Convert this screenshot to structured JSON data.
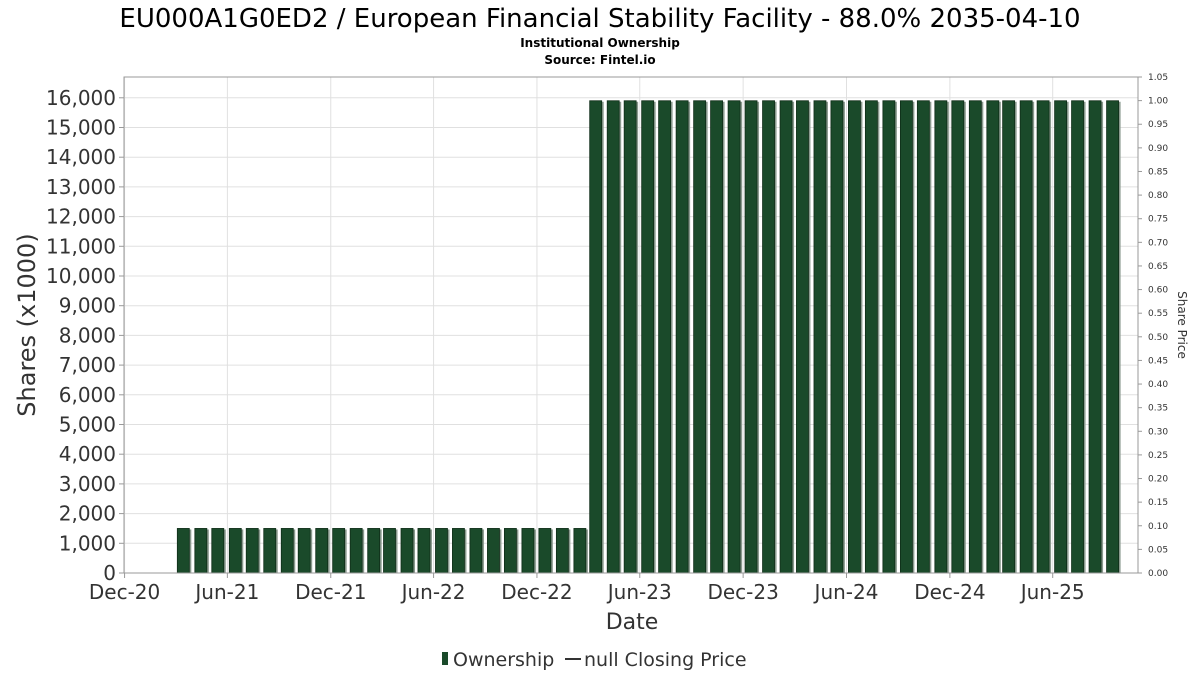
{
  "chart_data": {
    "type": "bar",
    "title": "EU000A1G0ED2 / European Financial Stability Facility - 88.0% 2035-04-10",
    "subtitle": "Institutional Ownership",
    "source": "Source: Fintel.io",
    "xlabel": "Date",
    "ylabel": "Shares (x1000)",
    "y2label": "Share Price",
    "ylim": [
      0,
      16700
    ],
    "y2lim": [
      0,
      1.05
    ],
    "xlim": [
      "2020-11-30",
      "2025-10-30"
    ],
    "x_tick_labels": [
      {
        "date": "2020-12-01",
        "label": "Dec-20"
      },
      {
        "date": "2021-06-01",
        "label": "Jun-21"
      },
      {
        "date": "2021-12-01",
        "label": "Dec-21"
      },
      {
        "date": "2022-06-01",
        "label": "Jun-22"
      },
      {
        "date": "2022-12-01",
        "label": "Dec-22"
      },
      {
        "date": "2023-06-01",
        "label": "Jun-23"
      },
      {
        "date": "2023-12-01",
        "label": "Dec-23"
      },
      {
        "date": "2024-06-01",
        "label": "Jun-24"
      },
      {
        "date": "2024-12-01",
        "label": "Dec-24"
      },
      {
        "date": "2025-06-01",
        "label": "Jun-25"
      }
    ],
    "y_tick_labels": [
      "0",
      "1,000",
      "2,000",
      "3,000",
      "4,000",
      "5,000",
      "6,000",
      "7,000",
      "8,000",
      "9,000",
      "10,000",
      "11,000",
      "12,000",
      "13,000",
      "14,000",
      "15,000",
      "16,000"
    ],
    "y2_tick_labels": [
      "0.00",
      "0.05",
      "0.10",
      "0.15",
      "0.20",
      "0.25",
      "0.30",
      "0.35",
      "0.40",
      "0.45",
      "0.50",
      "0.55",
      "0.60",
      "0.65",
      "0.70",
      "0.75",
      "0.80",
      "0.85",
      "0.90",
      "0.95",
      "1.00",
      "1.05"
    ],
    "grid": true,
    "legend_position": "bottom",
    "series": [
      {
        "name": "Ownership",
        "color": "#1a4a2a",
        "values": [
          {
            "date": "2021-03-15",
            "value": 1500
          },
          {
            "date": "2021-04-15",
            "value": 1500
          },
          {
            "date": "2021-05-15",
            "value": 1500
          },
          {
            "date": "2021-06-15",
            "value": 1500
          },
          {
            "date": "2021-07-15",
            "value": 1500
          },
          {
            "date": "2021-08-15",
            "value": 1500
          },
          {
            "date": "2021-09-15",
            "value": 1500
          },
          {
            "date": "2021-10-15",
            "value": 1500
          },
          {
            "date": "2021-11-15",
            "value": 1500
          },
          {
            "date": "2021-12-15",
            "value": 1500
          },
          {
            "date": "2022-01-15",
            "value": 1500
          },
          {
            "date": "2022-02-15",
            "value": 1500
          },
          {
            "date": "2022-03-15",
            "value": 1500
          },
          {
            "date": "2022-04-15",
            "value": 1500
          },
          {
            "date": "2022-05-15",
            "value": 1500
          },
          {
            "date": "2022-06-15",
            "value": 1500
          },
          {
            "date": "2022-07-15",
            "value": 1500
          },
          {
            "date": "2022-08-15",
            "value": 1500
          },
          {
            "date": "2022-09-15",
            "value": 1500
          },
          {
            "date": "2022-10-15",
            "value": 1500
          },
          {
            "date": "2022-11-15",
            "value": 1500
          },
          {
            "date": "2022-12-15",
            "value": 1500
          },
          {
            "date": "2023-01-15",
            "value": 1500
          },
          {
            "date": "2023-02-15",
            "value": 1500
          },
          {
            "date": "2023-03-15",
            "value": 15900
          },
          {
            "date": "2023-04-15",
            "value": 15900
          },
          {
            "date": "2023-05-15",
            "value": 15900
          },
          {
            "date": "2023-06-15",
            "value": 15900
          },
          {
            "date": "2023-07-15",
            "value": 15900
          },
          {
            "date": "2023-08-15",
            "value": 15900
          },
          {
            "date": "2023-09-15",
            "value": 15900
          },
          {
            "date": "2023-10-15",
            "value": 15900
          },
          {
            "date": "2023-11-15",
            "value": 15900
          },
          {
            "date": "2023-12-15",
            "value": 15900
          },
          {
            "date": "2024-01-15",
            "value": 15900
          },
          {
            "date": "2024-02-15",
            "value": 15900
          },
          {
            "date": "2024-03-15",
            "value": 15900
          },
          {
            "date": "2024-04-15",
            "value": 15900
          },
          {
            "date": "2024-05-15",
            "value": 15900
          },
          {
            "date": "2024-06-15",
            "value": 15900
          },
          {
            "date": "2024-07-15",
            "value": 15900
          },
          {
            "date": "2024-08-15",
            "value": 15900
          },
          {
            "date": "2024-09-15",
            "value": 15900
          },
          {
            "date": "2024-10-15",
            "value": 15900
          },
          {
            "date": "2024-11-15",
            "value": 15900
          },
          {
            "date": "2024-12-15",
            "value": 15900
          },
          {
            "date": "2025-01-15",
            "value": 15900
          },
          {
            "date": "2025-02-15",
            "value": 15900
          },
          {
            "date": "2025-03-15",
            "value": 15900
          },
          {
            "date": "2025-04-15",
            "value": 15900
          },
          {
            "date": "2025-05-15",
            "value": 15900
          },
          {
            "date": "2025-06-15",
            "value": 15900
          },
          {
            "date": "2025-07-15",
            "value": 15900
          },
          {
            "date": "2025-08-15",
            "value": 15900
          },
          {
            "date": "2025-09-15",
            "value": 15900
          }
        ]
      },
      {
        "name": "null Closing Price",
        "color": "#333333",
        "values": []
      }
    ]
  }
}
